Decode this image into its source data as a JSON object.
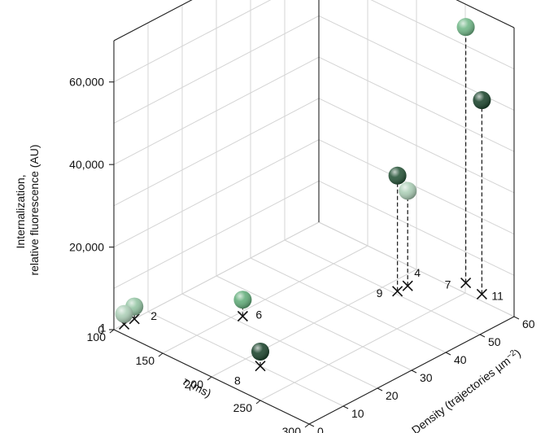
{
  "chart_data": {
    "type": "scatter",
    "projection": "3d",
    "x_axis": {
      "label_prefix": "τ",
      "label_suffix": " (ms)",
      "range": [
        100,
        300
      ],
      "ticks": [
        "100",
        "150",
        "200",
        "250",
        "300"
      ]
    },
    "y_axis": {
      "label": "Density (trajectories µm",
      "label_sup": "−2",
      "label_end": ")",
      "range": [
        0,
        60
      ],
      "ticks": [
        "0",
        "10",
        "20",
        "30",
        "40",
        "50",
        "60"
      ]
    },
    "z_axis": {
      "label_line1": "Internalization,",
      "label_line2": "relative fluorescence (AU)",
      "range": [
        0,
        70000
      ],
      "ticks": [
        "0",
        "20,000",
        "40,000",
        "60,000"
      ]
    },
    "grid": true,
    "drop_lines": "dashed",
    "floor_marker": "cross",
    "points": [
      {
        "label": "1",
        "tau": 100,
        "density": 3,
        "value": 2500,
        "color": "#a9cdb4"
      },
      {
        "label": "2",
        "tau": 100,
        "density": 6,
        "value": 3000,
        "color": "#8fc29f"
      },
      {
        "label": "6",
        "tau": 155,
        "density": 22,
        "value": 4000,
        "color": "#5caa75"
      },
      {
        "label": "8",
        "tau": 215,
        "density": 10,
        "value": 3500,
        "color": "#123d24"
      },
      {
        "label": "9",
        "tau": 212,
        "density": 51,
        "value": 28000,
        "color": "#1e4d30"
      },
      {
        "label": "4",
        "tau": 212,
        "density": 54,
        "value": 23000,
        "color": "#a9cdb4"
      },
      {
        "label": "7",
        "tau": 240,
        "density": 63,
        "value": 62000,
        "color": "#6bb583"
      },
      {
        "label": "11",
        "tau": 260,
        "density": 62,
        "value": 47000,
        "color": "#123d24"
      }
    ]
  }
}
